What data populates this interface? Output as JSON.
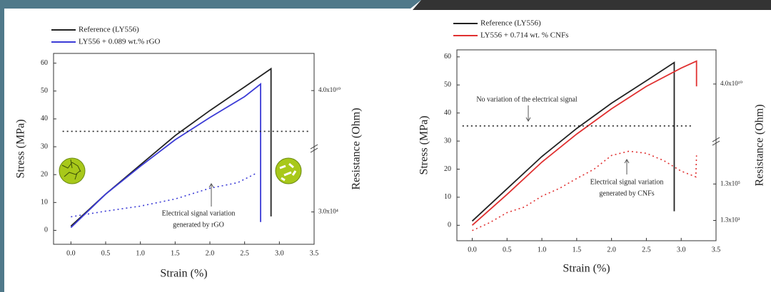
{
  "chart_data": [
    {
      "type": "line",
      "x_label": "Strain (%)",
      "y_label": "Stress (MPa)",
      "y2_label": "Resistance (Ohm)",
      "xlim": [
        -0.25,
        3.5
      ],
      "ylim": [
        -5,
        63.5
      ],
      "y2lim": [
        700,
        3000000000000.0
      ],
      "y2log": true,
      "xticks": [
        {
          "value": 0,
          "label": "0.0"
        },
        0.5,
        {
          "value": 1,
          "label": "1.0"
        },
        1.5,
        {
          "value": 2,
          "label": "2.0"
        },
        2.5,
        {
          "value": 3,
          "label": "3.0"
        },
        3.5
      ],
      "yticks": [
        0,
        10,
        20,
        30,
        40,
        50,
        60
      ],
      "y2ticks": [
        {
          "value": 40000000000.0,
          "label": "4.0x10¹⁰"
        },
        {
          "value": 30000.0,
          "label": "3.0x10⁴"
        }
      ],
      "grid": false,
      "series": [
        {
          "name": "Reference (LY556)",
          "color": "#222222",
          "x": [
            0,
            0.5,
            1.0,
            1.5,
            2.0,
            2.5,
            2.88,
            2.88
          ],
          "values": [
            1.5,
            13,
            23.5,
            34,
            43,
            51.5,
            58,
            5
          ]
        },
        {
          "name": "LY556 + 0.089 wt.% rGO",
          "color": "#3b3bd6",
          "x": [
            0,
            0.5,
            1.0,
            1.5,
            2.0,
            2.5,
            2.73,
            2.73
          ],
          "values": [
            1,
            13,
            23,
            32.5,
            40.5,
            48,
            52.5,
            3
          ]
        },
        {
          "color": "#222222",
          "axis": "y2",
          "dashed": true,
          "x": [
            -0.12,
            3.42
          ],
          "values": [
            350000000.0,
            350000000.0
          ]
        },
        {
          "color": "#3b3bd6",
          "axis": "y2",
          "dashed": true,
          "x": [
            0,
            0.5,
            1.0,
            1.5,
            2.0,
            2.4,
            2.65
          ],
          "values": [
            17000.0,
            33000.0,
            59000.0,
            135000.0,
            470000.0,
            900000.0,
            2500000.0
          ]
        }
      ],
      "annotations": [
        "Electrical signal variation",
        "generated by rGO"
      ]
    },
    {
      "type": "line",
      "x_label": "Strain (%)",
      "y_label": "Stress (MPa)",
      "y2_label": "Resistance (Ohm)",
      "xlim": [
        -0.22,
        3.5
      ],
      "ylim": [
        -5.5,
        62.5
      ],
      "y2lim": [
        100,
        3000000000000.0
      ],
      "y2log": true,
      "xticks": [
        {
          "value": 0,
          "label": "0.0"
        },
        0.5,
        {
          "value": 1,
          "label": "1.0"
        },
        1.5,
        {
          "value": 2,
          "label": "2.0"
        },
        2.5,
        {
          "value": 3,
          "label": "3.0"
        },
        3.5
      ],
      "yticks": [
        0,
        10,
        20,
        30,
        40,
        50,
        60
      ],
      "y2ticks": [
        {
          "value": 40000000000.0,
          "label": "4.0x10¹⁰"
        },
        {
          "value": 130000.0,
          "label": "1.3x10⁵"
        },
        {
          "value": 1300.0,
          "label": "1.3x10³"
        }
      ],
      "grid": false,
      "series": [
        {
          "name": "Reference (LY556)",
          "color": "#222222",
          "x": [
            0,
            0.5,
            1.0,
            1.5,
            2.0,
            2.5,
            2.9,
            2.9
          ],
          "values": [
            1.5,
            13,
            24.5,
            34.5,
            43.5,
            51.5,
            58,
            5
          ]
        },
        {
          "name": "LY556 + 0.714 wt. % CNFs",
          "color": "#e03030",
          "x": [
            0,
            0.5,
            1.0,
            1.5,
            2.0,
            2.5,
            3.0,
            3.22,
            3.22
          ],
          "values": [
            0,
            11,
            22.5,
            32.5,
            41.5,
            49.5,
            56,
            58.5,
            49.5
          ]
        },
        {
          "color": "#222222",
          "axis": "y2",
          "dashed": true,
          "x": [
            -0.14,
            3.18
          ],
          "values": [
            200000000.0,
            200000000.0
          ]
        },
        {
          "color": "#e03030",
          "axis": "y2",
          "dashed": true,
          "x": [
            0,
            0.25,
            0.5,
            0.75,
            1.0,
            1.25,
            1.5,
            1.75,
            2.0,
            2.25,
            2.5,
            2.75,
            3.0,
            3.21,
            3.22
          ],
          "values": [
            360,
            980,
            3500,
            7100,
            28000.0,
            74000.0,
            260000.0,
            850000.0,
            4800000.0,
            8200000.0,
            6300000.0,
            2500000.0,
            660000.0,
            320000.0,
            4800000.0
          ]
        }
      ],
      "annotations": [
        "No variation of the electrical signal",
        "Electrical signal variation",
        "generated by CNFs"
      ]
    }
  ]
}
